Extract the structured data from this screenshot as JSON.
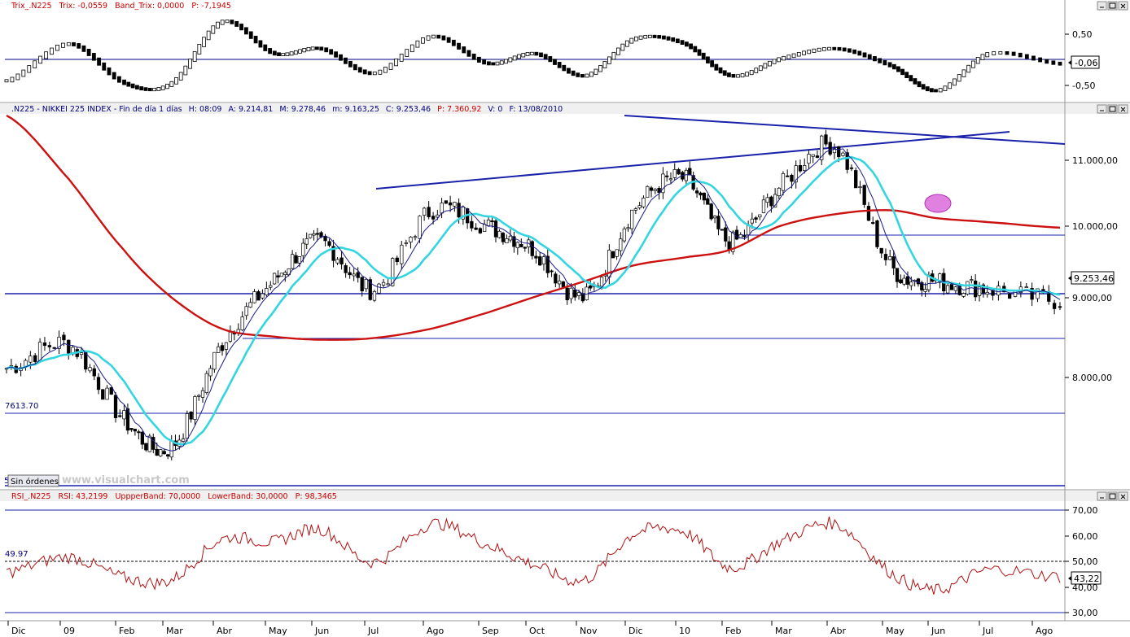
{
  "panels": {
    "trix": {
      "title": "Trix_.N225",
      "fields": [
        "Trix: -0,0559",
        "Band_Trix: 0,0000",
        "P: -7,1945"
      ],
      "axis_labels": [
        "0,50",
        "-0,50"
      ],
      "last_value": "-0,06"
    },
    "price": {
      "title": ".N225 - NIKKEI 225 INDEX - Fin de día 1 días",
      "fields": [
        "H: 08:09",
        "A: 9.214,81",
        "M: 9.278,46",
        "m: 9.163,25",
        "C: 9.253,46"
      ],
      "p_field": "P: 7.360,92",
      "tail_fields": [
        "V: 0",
        "F: 13/08/2010"
      ],
      "axis_labels": [
        "11.000,00",
        "10.000,00",
        "9.000,00",
        "8.000,00"
      ],
      "last_value": "9.253,46",
      "level_label": "7613.70",
      "bottom_label": "5",
      "orders_button": "Sin órdenes",
      "watermark": "www.visualchart.com"
    },
    "rsi": {
      "title": "RSI_.N225",
      "fields": [
        "RSI: 43,2199",
        "UppperBand: 70,0000",
        "LowerBand: 30,0000",
        "P: 98,3465"
      ],
      "axis_labels": [
        "70,00",
        "60,00",
        "50,00",
        "40,00",
        "30,00"
      ],
      "last_value": "43,22",
      "level_label": "49.97"
    }
  },
  "window_buttons": [
    "minimize",
    "maximize",
    "close"
  ],
  "x_axis_labels": [
    "Dic",
    "09",
    "Feb",
    "Mar",
    "Abr",
    "May",
    "Jun",
    "Jul",
    "Ago",
    "Sep",
    "Oct",
    "Nov",
    "Dic",
    "10",
    "Feb",
    "Mar",
    "Abr",
    "May",
    "Jun",
    "Jul",
    "Ago"
  ],
  "colors": {
    "sma_long": "#cc1111",
    "sma_mid": "#33d6e0",
    "sma_short": "#1a1a88",
    "trendlines": "#1a22aa",
    "rsi_line": "#b01010",
    "highlight": "#e080e0"
  },
  "chart_data": [
    {
      "type": "line",
      "name": "Trix",
      "x": [
        "Dic",
        "09",
        "Feb",
        "Mar",
        "Abr",
        "May",
        "Jun",
        "Jul",
        "Ago",
        "Sep",
        "Oct",
        "Nov",
        "Dic",
        "10",
        "Feb",
        "Mar",
        "Abr",
        "May",
        "Jun",
        "Jul",
        "Ago"
      ],
      "values": [
        -0.4,
        0.35,
        -0.45,
        -0.45,
        0.8,
        0.15,
        0.25,
        -0.25,
        0.5,
        -0.05,
        0.15,
        -0.3,
        0.45,
        0.35,
        -0.3,
        0.05,
        0.25,
        -0.1,
        -0.6,
        0.15,
        -0.06
      ],
      "ylim": [
        -0.75,
        0.9
      ],
      "reference_line": 0
    },
    {
      "type": "candlestick",
      "name": "NIKKEI 225",
      "x": [
        "Dic",
        "09",
        "Feb",
        "Mar",
        "Abr",
        "May",
        "Jun",
        "Jul",
        "Ago",
        "Sep",
        "Oct",
        "Nov",
        "Dic",
        "10",
        "Feb",
        "Mar",
        "Abr",
        "May",
        "Jun",
        "Jul",
        "Ago"
      ],
      "close": [
        8400,
        8700,
        7750,
        7400,
        8700,
        9500,
        10000,
        9400,
        10400,
        10200,
        9900,
        9300,
        10400,
        10800,
        10000,
        10700,
        11200,
        9700,
        9500,
        9400,
        9253.46
      ],
      "sma_long": [
        11600,
        10800,
        9900,
        9300,
        8900,
        8800,
        8760,
        8780,
        8900,
        9100,
        9300,
        9500,
        9700,
        9800,
        9900,
        10200,
        10350,
        10400,
        10300,
        10250,
        10180
      ],
      "ylim": [
        6900,
        11600
      ],
      "horizontal_levels": [
        9050,
        8500,
        7613.7,
        9880
      ],
      "trendlines": [
        {
          "from": [
            "Jul",
            10560
          ],
          "to": [
            "Abr",
            11380
          ]
        },
        {
          "from": [
            "Nov",
            11820
          ],
          "to": [
            "Ago",
            11220
          ]
        }
      ]
    },
    {
      "type": "line",
      "name": "RSI",
      "x": [
        "Dic",
        "09",
        "Feb",
        "Mar",
        "Abr",
        "May",
        "Jun",
        "Jul",
        "Ago",
        "Sep",
        "Oct",
        "Nov",
        "Dic",
        "10",
        "Feb",
        "Mar",
        "Abr",
        "May",
        "Jun",
        "Jul",
        "Ago"
      ],
      "values": [
        45,
        51,
        43,
        42,
        58,
        57,
        62,
        49,
        64,
        56,
        48,
        42,
        60,
        61,
        47,
        57,
        64,
        45,
        38,
        46,
        43.22
      ],
      "ylim": [
        27,
        72
      ],
      "bands": [
        70,
        30,
        49.97
      ]
    }
  ]
}
